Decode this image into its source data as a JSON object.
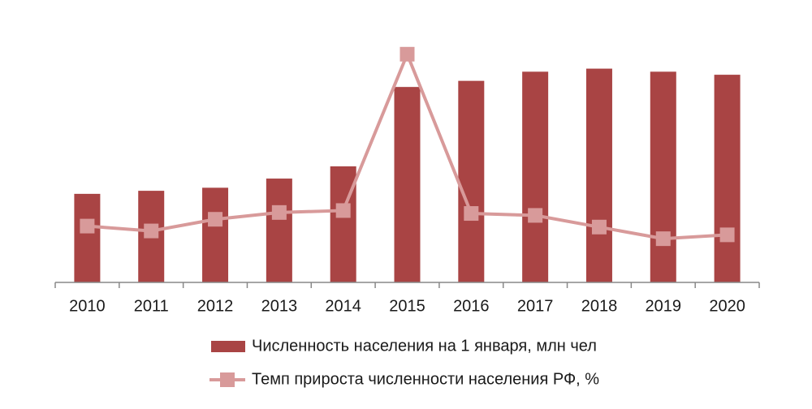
{
  "chart_data": {
    "type": "bar",
    "categories": [
      "2010",
      "2011",
      "2012",
      "2013",
      "2014",
      "2015",
      "2016",
      "2017",
      "2018",
      "2019",
      "2020"
    ],
    "series": [
      {
        "name": "Численность населения на 1 января, млн чел",
        "type": "bar",
        "color": "#a94444",
        "values": [
          142.8,
          142.9,
          143.0,
          143.3,
          143.7,
          146.3,
          146.5,
          146.8,
          146.9,
          146.8,
          146.7
        ]
      },
      {
        "name": "Темп прироста численности населения РФ, %",
        "type": "line",
        "axis": "y2",
        "color": "#d89a9a",
        "values": [
          0.04,
          -0.01,
          0.11,
          0.18,
          0.2,
          1.81,
          0.17,
          0.15,
          0.03,
          -0.09,
          -0.05
        ]
      }
    ],
    "ylim": [
      139.9,
      147.5
    ],
    "y2lim": [
      -0.54,
      1.85
    ],
    "legend": "bottom"
  }
}
